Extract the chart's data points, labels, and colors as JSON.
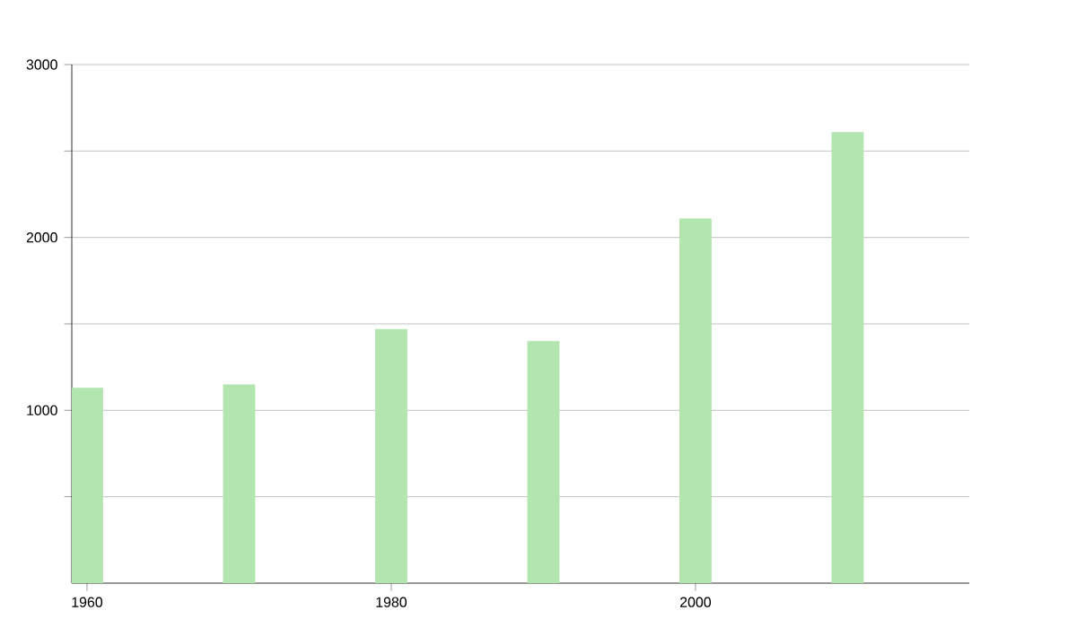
{
  "chart_data": {
    "type": "bar",
    "x": [
      1960,
      1970,
      1980,
      1990,
      2000,
      2010
    ],
    "values": [
      1130,
      1150,
      1470,
      1400,
      2110,
      2610
    ],
    "color": "#b2e5b0",
    "xlim": [
      1959,
      2018
    ],
    "xticks": [
      1960,
      1980,
      2000
    ],
    "ylim": [
      0,
      3000
    ],
    "yticks": [
      {
        "value": 500,
        "label": null
      },
      1000,
      {
        "value": 1500,
        "label": null
      },
      2000,
      {
        "value": 2500,
        "label": null
      },
      3000
    ],
    "grid": "y"
  }
}
